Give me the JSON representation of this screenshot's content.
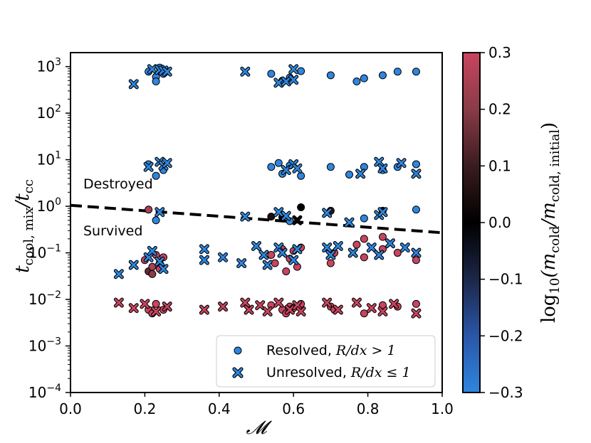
{
  "chart_data": {
    "type": "scatter",
    "xlabel": "𝓜",
    "ylabel": "t",
    "ylabel_sub1": "cool, mix",
    "ylabel_mid": "/t",
    "ylabel_sub2": "cc",
    "xlim": [
      0.0,
      1.0
    ],
    "ylim_log10": [
      -4,
      3.3
    ],
    "x_ticks": [
      0.0,
      0.2,
      0.4,
      0.6,
      0.8,
      1.0
    ],
    "x_tick_labels": [
      "0.0",
      "0.2",
      "0.4",
      "0.6",
      "0.8",
      "1.0"
    ],
    "y_ticks_log10": [
      -4,
      -3,
      -2,
      -1,
      0,
      1,
      2,
      3
    ],
    "y_tick_labels": [
      {
        "base": "10",
        "exp": "−4"
      },
      {
        "base": "10",
        "exp": "−3"
      },
      {
        "base": "10",
        "exp": "−2"
      },
      {
        "base": "10",
        "exp": "−1"
      },
      {
        "base": "10",
        "exp": "0"
      },
      {
        "base": "10",
        "exp": "1"
      },
      {
        "base": "10",
        "exp": "2"
      },
      {
        "base": "10",
        "exp": "3"
      }
    ],
    "annotations": {
      "destroyed": "Destroyed",
      "survived": "Survived"
    },
    "threshold_line": {
      "style": "dashed",
      "color": "#000000",
      "x": [
        0.0,
        1.0
      ],
      "y": [
        1.05,
        0.27
      ]
    },
    "colorbar": {
      "label": "log",
      "label_sub": "10",
      "label_rest": "(m",
      "label_sub2": "cold",
      "label_mid": "/m",
      "label_sub3": "cold, initial",
      "label_end": ")",
      "min": -0.3,
      "max": 0.3,
      "ticks": [
        0.3,
        0.2,
        0.1,
        0.0,
        -0.1,
        -0.2,
        -0.3
      ],
      "tick_labels": [
        "0.3",
        "0.2",
        "0.1",
        "0.0",
        "−0.1",
        "−0.2",
        "−0.3"
      ],
      "colors": [
        "#c8455f",
        "#8a3b48",
        "#3a1c1e",
        "#000000",
        "#1c2748",
        "#2a56a8",
        "#2e86de"
      ]
    },
    "legend": {
      "position": "lower-right",
      "entries": [
        {
          "marker": "circle",
          "label": "Resolved, ",
          "math": "R/dx > 1"
        },
        {
          "marker": "x",
          "label": "Unresolved, ",
          "math": "R/dx ≤ 1"
        }
      ]
    },
    "series": [
      {
        "name": "Resolved",
        "marker": "circle",
        "points": [
          {
            "x": 0.21,
            "y": 780,
            "c": -0.3
          },
          {
            "x": 0.23,
            "y": 600,
            "c": -0.3
          },
          {
            "x": 0.24,
            "y": 950,
            "c": -0.3
          },
          {
            "x": 0.25,
            "y": 700,
            "c": -0.3
          },
          {
            "x": 0.23,
            "y": 480,
            "c": -0.3
          },
          {
            "x": 0.54,
            "y": 700,
            "c": -0.3
          },
          {
            "x": 0.57,
            "y": 500,
            "c": -0.3
          },
          {
            "x": 0.59,
            "y": 580,
            "c": -0.3
          },
          {
            "x": 0.62,
            "y": 800,
            "c": -0.3
          },
          {
            "x": 0.7,
            "y": 650,
            "c": -0.3
          },
          {
            "x": 0.77,
            "y": 480,
            "c": -0.3
          },
          {
            "x": 0.79,
            "y": 560,
            "c": -0.3
          },
          {
            "x": 0.84,
            "y": 650,
            "c": -0.3
          },
          {
            "x": 0.88,
            "y": 780,
            "c": -0.3
          },
          {
            "x": 0.93,
            "y": 780,
            "c": -0.3
          },
          {
            "x": 0.21,
            "y": 8,
            "c": -0.3
          },
          {
            "x": 0.23,
            "y": 4.5,
            "c": -0.3
          },
          {
            "x": 0.25,
            "y": 6,
            "c": -0.3
          },
          {
            "x": 0.54,
            "y": 7,
            "c": -0.3
          },
          {
            "x": 0.56,
            "y": 8.5,
            "c": -0.3
          },
          {
            "x": 0.57,
            "y": 5,
            "c": -0.3
          },
          {
            "x": 0.59,
            "y": 7.5,
            "c": -0.3
          },
          {
            "x": 0.62,
            "y": 4.5,
            "c": -0.3
          },
          {
            "x": 0.7,
            "y": 7,
            "c": -0.3
          },
          {
            "x": 0.75,
            "y": 4.8,
            "c": -0.3
          },
          {
            "x": 0.79,
            "y": 7,
            "c": -0.3
          },
          {
            "x": 0.84,
            "y": 6,
            "c": -0.3
          },
          {
            "x": 0.88,
            "y": 7,
            "c": -0.3
          },
          {
            "x": 0.93,
            "y": 8,
            "c": -0.3
          },
          {
            "x": 0.21,
            "y": 0.85,
            "c": 0.25
          },
          {
            "x": 0.23,
            "y": 0.5,
            "c": -0.3
          },
          {
            "x": 0.54,
            "y": 0.6,
            "c": 0.05
          },
          {
            "x": 0.57,
            "y": 0.58,
            "c": 0.0
          },
          {
            "x": 0.59,
            "y": 0.48,
            "c": -0.3
          },
          {
            "x": 0.62,
            "y": 0.95,
            "c": 0.0
          },
          {
            "x": 0.7,
            "y": 0.8,
            "c": 0.08
          },
          {
            "x": 0.79,
            "y": 0.55,
            "c": -0.3
          },
          {
            "x": 0.84,
            "y": 0.8,
            "c": 0.02
          },
          {
            "x": 0.93,
            "y": 0.85,
            "c": -0.3
          },
          {
            "x": 0.2,
            "y": 0.07,
            "c": 0.3
          },
          {
            "x": 0.21,
            "y": 0.04,
            "c": 0.15
          },
          {
            "x": 0.22,
            "y": 0.05,
            "c": 0.25
          },
          {
            "x": 0.23,
            "y": 0.09,
            "c": 0.3
          },
          {
            "x": 0.24,
            "y": 0.06,
            "c": 0.3
          },
          {
            "x": 0.25,
            "y": 0.08,
            "c": 0.3
          },
          {
            "x": 0.22,
            "y": 0.035,
            "c": 0.2
          },
          {
            "x": 0.24,
            "y": 0.045,
            "c": 0.3
          },
          {
            "x": 0.54,
            "y": 0.09,
            "c": 0.3
          },
          {
            "x": 0.55,
            "y": 0.06,
            "c": 0.3
          },
          {
            "x": 0.57,
            "y": 0.12,
            "c": 0.3
          },
          {
            "x": 0.58,
            "y": 0.04,
            "c": 0.3
          },
          {
            "x": 0.59,
            "y": 0.075,
            "c": 0.3
          },
          {
            "x": 0.6,
            "y": 0.11,
            "c": 0.3
          },
          {
            "x": 0.61,
            "y": 0.05,
            "c": 0.3
          },
          {
            "x": 0.62,
            "y": 0.13,
            "c": 0.3
          },
          {
            "x": 0.7,
            "y": 0.06,
            "c": 0.3
          },
          {
            "x": 0.71,
            "y": 0.1,
            "c": 0.3
          },
          {
            "x": 0.77,
            "y": 0.15,
            "c": 0.3
          },
          {
            "x": 0.79,
            "y": 0.08,
            "c": 0.3
          },
          {
            "x": 0.79,
            "y": 0.2,
            "c": 0.3
          },
          {
            "x": 0.84,
            "y": 0.12,
            "c": 0.3
          },
          {
            "x": 0.84,
            "y": 0.22,
            "c": 0.3
          },
          {
            "x": 0.88,
            "y": 0.1,
            "c": 0.3
          },
          {
            "x": 0.93,
            "y": 0.07,
            "c": 0.3
          },
          {
            "x": 0.21,
            "y": 0.006,
            "c": 0.3
          },
          {
            "x": 0.22,
            "y": 0.005,
            "c": 0.3
          },
          {
            "x": 0.23,
            "y": 0.008,
            "c": 0.3
          },
          {
            "x": 0.25,
            "y": 0.006,
            "c": 0.3
          },
          {
            "x": 0.54,
            "y": 0.0075,
            "c": 0.3
          },
          {
            "x": 0.57,
            "y": 0.006,
            "c": 0.3
          },
          {
            "x": 0.58,
            "y": 0.005,
            "c": 0.3
          },
          {
            "x": 0.59,
            "y": 0.007,
            "c": 0.3
          },
          {
            "x": 0.6,
            "y": 0.0065,
            "c": 0.3
          },
          {
            "x": 0.62,
            "y": 0.008,
            "c": 0.3
          },
          {
            "x": 0.7,
            "y": 0.007,
            "c": 0.3
          },
          {
            "x": 0.71,
            "y": 0.006,
            "c": 0.3
          },
          {
            "x": 0.79,
            "y": 0.005,
            "c": 0.3
          },
          {
            "x": 0.84,
            "y": 0.0075,
            "c": 0.3
          },
          {
            "x": 0.88,
            "y": 0.007,
            "c": 0.3
          },
          {
            "x": 0.93,
            "y": 0.008,
            "c": 0.3
          }
        ]
      },
      {
        "name": "Unresolved",
        "marker": "x",
        "points": [
          {
            "x": 0.17,
            "y": 420,
            "c": -0.3
          },
          {
            "x": 0.22,
            "y": 880,
            "c": -0.3
          },
          {
            "x": 0.24,
            "y": 850,
            "c": -0.3
          },
          {
            "x": 0.25,
            "y": 820,
            "c": -0.3
          },
          {
            "x": 0.26,
            "y": 780,
            "c": -0.3
          },
          {
            "x": 0.47,
            "y": 780,
            "c": -0.3
          },
          {
            "x": 0.56,
            "y": 450,
            "c": -0.3
          },
          {
            "x": 0.58,
            "y": 480,
            "c": -0.3
          },
          {
            "x": 0.6,
            "y": 880,
            "c": -0.3
          },
          {
            "x": 0.6,
            "y": 520,
            "c": -0.3
          },
          {
            "x": 0.21,
            "y": 7,
            "c": -0.3
          },
          {
            "x": 0.24,
            "y": 9,
            "c": -0.3
          },
          {
            "x": 0.25,
            "y": 7.5,
            "c": -0.3
          },
          {
            "x": 0.26,
            "y": 8.5,
            "c": -0.3
          },
          {
            "x": 0.58,
            "y": 6,
            "c": -0.3
          },
          {
            "x": 0.6,
            "y": 8,
            "c": -0.3
          },
          {
            "x": 0.61,
            "y": 6.5,
            "c": -0.3
          },
          {
            "x": 0.78,
            "y": 5,
            "c": -0.3
          },
          {
            "x": 0.83,
            "y": 9,
            "c": -0.3
          },
          {
            "x": 0.84,
            "y": 6.5,
            "c": -0.3
          },
          {
            "x": 0.89,
            "y": 8.5,
            "c": -0.3
          },
          {
            "x": 0.93,
            "y": 5,
            "c": -0.3
          },
          {
            "x": 0.24,
            "y": 0.75,
            "c": -0.3
          },
          {
            "x": 0.47,
            "y": 0.6,
            "c": -0.3
          },
          {
            "x": 0.56,
            "y": 0.75,
            "c": -0.3
          },
          {
            "x": 0.58,
            "y": 0.62,
            "c": -0.3
          },
          {
            "x": 0.61,
            "y": 0.5,
            "c": 0.02
          },
          {
            "x": 0.69,
            "y": 0.72,
            "c": -0.3
          },
          {
            "x": 0.75,
            "y": 0.45,
            "c": -0.3
          },
          {
            "x": 0.83,
            "y": 0.65,
            "c": -0.3
          },
          {
            "x": 0.84,
            "y": 0.75,
            "c": -0.3
          },
          {
            "x": 0.13,
            "y": 0.035,
            "c": -0.3
          },
          {
            "x": 0.17,
            "y": 0.055,
            "c": -0.3
          },
          {
            "x": 0.21,
            "y": 0.08,
            "c": -0.3
          },
          {
            "x": 0.22,
            "y": 0.11,
            "c": -0.3
          },
          {
            "x": 0.24,
            "y": 0.065,
            "c": -0.3
          },
          {
            "x": 0.25,
            "y": 0.045,
            "c": -0.3
          },
          {
            "x": 0.36,
            "y": 0.12,
            "c": -0.3
          },
          {
            "x": 0.36,
            "y": 0.07,
            "c": -0.3
          },
          {
            "x": 0.41,
            "y": 0.08,
            "c": -0.3
          },
          {
            "x": 0.46,
            "y": 0.06,
            "c": -0.3
          },
          {
            "x": 0.5,
            "y": 0.14,
            "c": -0.3
          },
          {
            "x": 0.52,
            "y": 0.09,
            "c": -0.3
          },
          {
            "x": 0.53,
            "y": 0.055,
            "c": -0.3
          },
          {
            "x": 0.56,
            "y": 0.13,
            "c": -0.3
          },
          {
            "x": 0.57,
            "y": 0.1,
            "c": -0.3
          },
          {
            "x": 0.6,
            "y": 0.07,
            "c": -0.3
          },
          {
            "x": 0.61,
            "y": 0.12,
            "c": -0.3
          },
          {
            "x": 0.69,
            "y": 0.13,
            "c": -0.3
          },
          {
            "x": 0.7,
            "y": 0.09,
            "c": -0.3
          },
          {
            "x": 0.72,
            "y": 0.14,
            "c": -0.3
          },
          {
            "x": 0.76,
            "y": 0.1,
            "c": -0.3
          },
          {
            "x": 0.81,
            "y": 0.13,
            "c": -0.3
          },
          {
            "x": 0.83,
            "y": 0.09,
            "c": -0.3
          },
          {
            "x": 0.86,
            "y": 0.16,
            "c": -0.3
          },
          {
            "x": 0.9,
            "y": 0.13,
            "c": -0.3
          },
          {
            "x": 0.93,
            "y": 0.1,
            "c": -0.3
          },
          {
            "x": 0.13,
            "y": 0.0085,
            "c": 0.3
          },
          {
            "x": 0.17,
            "y": 0.0065,
            "c": 0.3
          },
          {
            "x": 0.2,
            "y": 0.008,
            "c": 0.3
          },
          {
            "x": 0.23,
            "y": 0.0055,
            "c": 0.3
          },
          {
            "x": 0.26,
            "y": 0.007,
            "c": 0.3
          },
          {
            "x": 0.36,
            "y": 0.006,
            "c": 0.3
          },
          {
            "x": 0.41,
            "y": 0.007,
            "c": 0.3
          },
          {
            "x": 0.47,
            "y": 0.0085,
            "c": 0.3
          },
          {
            "x": 0.48,
            "y": 0.006,
            "c": 0.3
          },
          {
            "x": 0.51,
            "y": 0.0075,
            "c": 0.3
          },
          {
            "x": 0.53,
            "y": 0.0055,
            "c": 0.3
          },
          {
            "x": 0.56,
            "y": 0.0085,
            "c": 0.3
          },
          {
            "x": 0.59,
            "y": 0.006,
            "c": 0.3
          },
          {
            "x": 0.61,
            "y": 0.0075,
            "c": 0.3
          },
          {
            "x": 0.62,
            "y": 0.0055,
            "c": 0.3
          },
          {
            "x": 0.69,
            "y": 0.0085,
            "c": 0.3
          },
          {
            "x": 0.72,
            "y": 0.006,
            "c": 0.3
          },
          {
            "x": 0.77,
            "y": 0.0085,
            "c": 0.3
          },
          {
            "x": 0.81,
            "y": 0.0065,
            "c": 0.3
          },
          {
            "x": 0.84,
            "y": 0.0055,
            "c": 0.3
          },
          {
            "x": 0.87,
            "y": 0.008,
            "c": 0.3
          },
          {
            "x": 0.93,
            "y": 0.005,
            "c": 0.3
          }
        ]
      }
    ]
  }
}
